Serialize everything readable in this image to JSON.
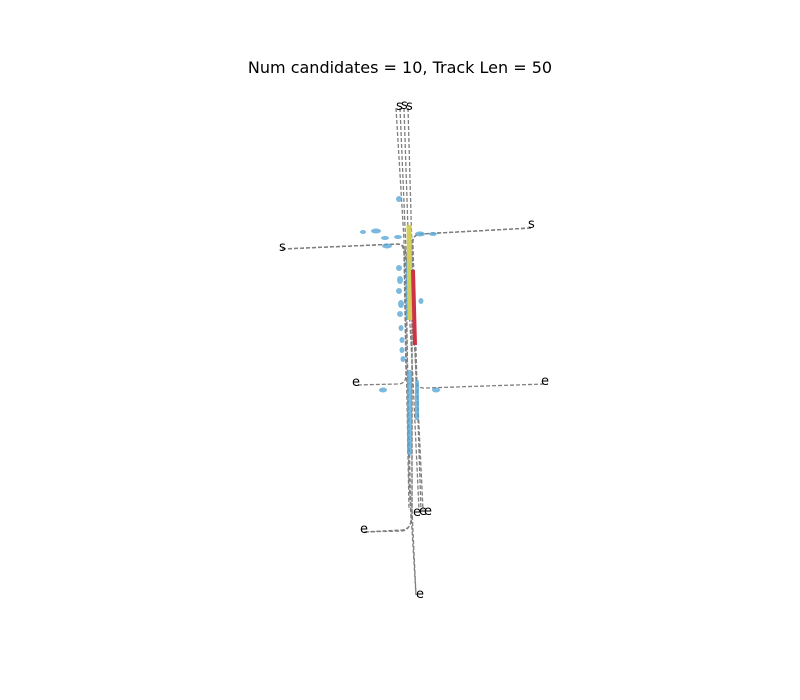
{
  "title": "Num candidates = 10, Track Len = 50",
  "candidates": {
    "count": 10,
    "start_label": "s",
    "end_label": "e",
    "color": "#7f7f7f"
  },
  "track": {
    "length": 50,
    "segments": [
      {
        "name": "track-segment-yellow",
        "color": "#d4cf5a"
      },
      {
        "name": "track-segment-red",
        "color": "#cc3344"
      }
    ]
  },
  "detections": {
    "color": "#5aa9d6"
  }
}
